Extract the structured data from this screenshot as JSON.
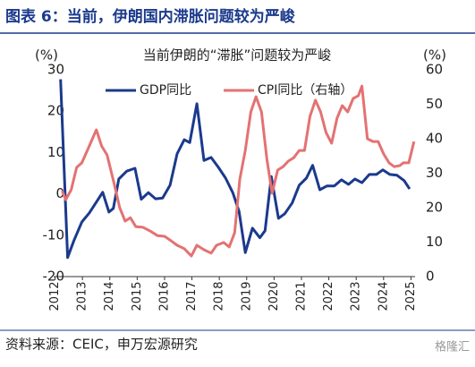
{
  "header": "图表 6：当前，伊朗国内滞胀问题较为严峻",
  "chart_data": {
    "type": "line",
    "title": "当前伊朗的“滞胀”问题较为严峻",
    "y_unit": "(%)",
    "y2_unit": "(%)",
    "xlim": [
      2011.95,
      2025.15
    ],
    "xticks": [
      2012,
      2013,
      2014,
      2015,
      2016,
      2017,
      2018,
      2019,
      2020,
      2021,
      2022,
      2023,
      2024,
      2025
    ],
    "ylim": [
      -20,
      30
    ],
    "yticks": [
      -20,
      -10,
      0,
      10,
      20,
      30
    ],
    "y2lim": [
      0,
      60
    ],
    "y2ticks": [
      0,
      10,
      20,
      30,
      40,
      50,
      60
    ],
    "legend": "top",
    "series": [
      {
        "name": "GDP同比",
        "color": "#1b3a8c",
        "x": [
          2012.2,
          2012.46,
          2012.69,
          2012.98,
          2013.25,
          2013.51,
          2013.74,
          2013.97,
          2014.13,
          2014.33,
          2014.62,
          2014.92,
          2015.15,
          2015.41,
          2015.67,
          2015.93,
          2016.2,
          2016.46,
          2016.72,
          2016.92,
          2017.18,
          2017.44,
          2017.7,
          2017.97,
          2018.23,
          2018.49,
          2018.72,
          2018.95,
          2019.21,
          2019.48,
          2019.67,
          2019.9,
          2020.16,
          2020.39,
          2020.66,
          2020.92,
          2021.18,
          2021.41,
          2021.67,
          2021.93,
          2022.2,
          2022.46,
          2022.72,
          2022.95,
          2023.21,
          2023.48,
          2023.74,
          2023.97,
          2024.23,
          2024.49,
          2024.75,
          2024.95
        ],
        "values": [
          27.7,
          -15.4,
          -11.3,
          -6.8,
          -4.6,
          -2,
          0.4,
          -4.4,
          -3.5,
          3.6,
          5.5,
          6.2,
          -1.3,
          0.3,
          -1.2,
          -1,
          2.1,
          9.7,
          13.1,
          12.4,
          21.8,
          8.1,
          8.8,
          6.4,
          3.8,
          0.3,
          -4.2,
          -14.2,
          -8.3,
          -10.6,
          -8.9,
          4.2,
          -5.9,
          -4.8,
          -2.2,
          2.1,
          3.8,
          6.9,
          1.0,
          1.9,
          1.9,
          3.4,
          2.3,
          3.6,
          2.7,
          4.7,
          4.7,
          5.8,
          4.7,
          4.5,
          3.2,
          1.2
        ]
      },
      {
        "name": "CPI同比（右轴）",
        "color": "#e47272",
        "axis": "y2",
        "x": [
          2012.26,
          2012.39,
          2012.59,
          2012.79,
          2012.98,
          2013.25,
          2013.51,
          2013.7,
          2013.9,
          2014.16,
          2014.36,
          2014.56,
          2014.75,
          2014.95,
          2015.21,
          2015.48,
          2015.74,
          2016.0,
          2016.2,
          2016.46,
          2016.72,
          2016.98,
          2017.18,
          2017.44,
          2017.7,
          2017.9,
          2018.16,
          2018.36,
          2018.56,
          2018.75,
          2018.95,
          2019.15,
          2019.34,
          2019.54,
          2019.74,
          2019.93,
          2020.13,
          2020.33,
          2020.52,
          2020.72,
          2020.92,
          2021.11,
          2021.31,
          2021.51,
          2021.7,
          2021.9,
          2022.1,
          2022.3,
          2022.49,
          2022.69,
          2022.89,
          2023.08,
          2023.21,
          2023.41,
          2023.61,
          2023.8,
          2024.0,
          2024.2,
          2024.39,
          2024.59,
          2024.72,
          2024.92,
          2025.11
        ],
        "values": [
          24.9,
          22.3,
          25.2,
          31.7,
          33.0,
          37.9,
          42.6,
          37.9,
          35.3,
          27.0,
          20.0,
          16.1,
          17.1,
          14.5,
          14.3,
          13.2,
          11.9,
          11.7,
          10.6,
          9.1,
          8.1,
          6.0,
          9.1,
          7.8,
          6.8,
          9.1,
          9.9,
          8.6,
          12.7,
          28.3,
          36.6,
          47.8,
          52.2,
          47.8,
          34.0,
          24.2,
          30.9,
          31.9,
          33.5,
          34.5,
          36.6,
          36.6,
          46.5,
          51.2,
          47.8,
          41.8,
          38.7,
          46.0,
          49.6,
          47.8,
          51.7,
          52.5,
          55.3,
          40.0,
          39.2,
          39.2,
          35.6,
          33.0,
          31.9,
          32.2,
          33.0,
          33.0,
          39.2
        ]
      }
    ]
  },
  "source": "资料来源：CEIC，申万宏源研究",
  "watermark": "格隆汇"
}
